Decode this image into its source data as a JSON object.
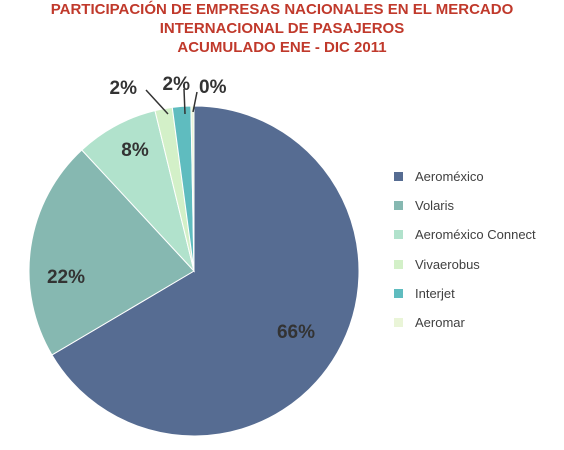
{
  "chart_data": {
    "type": "pie",
    "title_lines": [
      "PARTICIPACIÓN DE EMPRESAS NACIONALES EN EL MERCADO",
      "INTERNACIONAL DE PASAJEROS",
      "ACUMULADO ENE - DIC 2011"
    ],
    "slices": [
      {
        "name": "Aeroméxico",
        "value": 66.5,
        "label": "66%",
        "color": "#566c92"
      },
      {
        "name": "Volaris",
        "value": 21.6,
        "label": "22%",
        "color": "#86b8b1"
      },
      {
        "name": "Aeroméxico Connect",
        "value": 8.1,
        "label": "8%",
        "color": "#b1e2cc"
      },
      {
        "name": "Vivaerobus",
        "value": 1.7,
        "label": "2%",
        "color": "#d3f0c8"
      },
      {
        "name": "Interjet",
        "value": 1.8,
        "label": "2%",
        "color": "#5fbcbf"
      },
      {
        "name": "Aeromar",
        "value": 0.3,
        "label": "0%",
        "color": "#eaf5d8"
      }
    ],
    "legend_position": "right"
  }
}
